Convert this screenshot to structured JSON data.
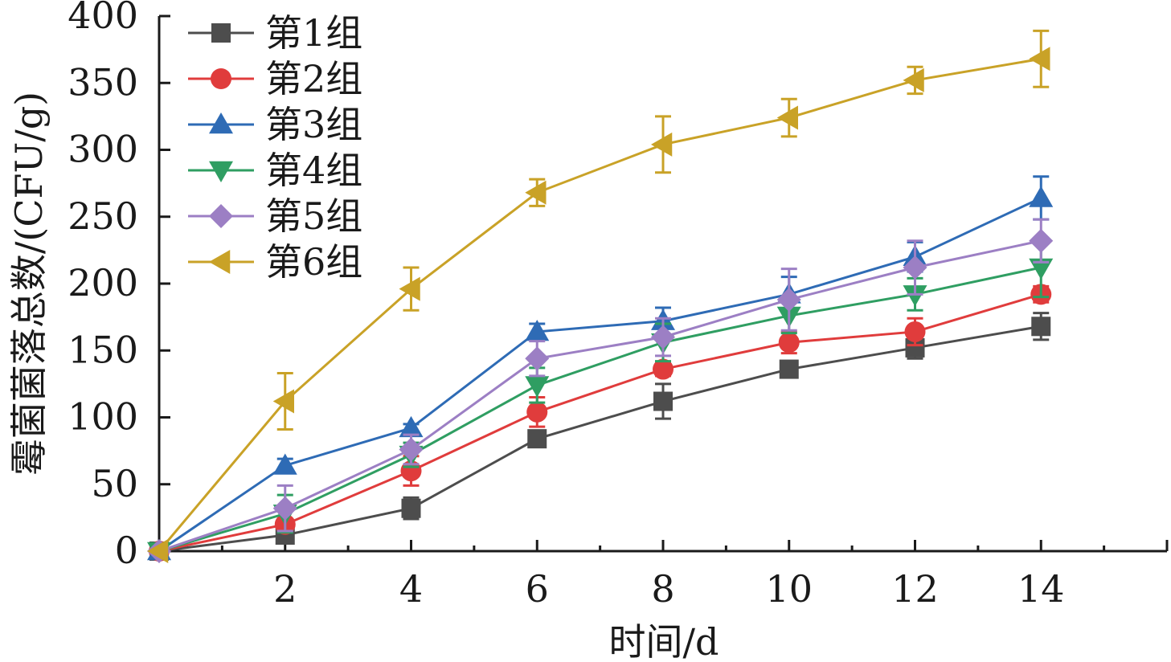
{
  "chart_data": {
    "type": "line",
    "title": "",
    "xlabel": "时间/d",
    "ylabel": "霉菌菌落总数/(CFU/g)",
    "xlim": [
      0,
      16
    ],
    "ylim": [
      0,
      400
    ],
    "x_ticks": [
      2,
      4,
      6,
      8,
      10,
      12,
      14
    ],
    "y_ticks": [
      0,
      50,
      100,
      150,
      200,
      250,
      300,
      350,
      400
    ],
    "x": [
      0,
      2,
      4,
      6,
      8,
      10,
      12,
      14
    ],
    "grid": false,
    "legend_position": "top-left",
    "series": [
      {
        "name": "第1组",
        "color": "#4d4d4d",
        "marker": "square",
        "values": [
          0,
          12,
          32,
          84,
          112,
          136,
          152,
          168
        ],
        "errors": [
          0,
          3,
          8,
          3,
          13,
          4,
          8,
          10
        ]
      },
      {
        "name": "第2组",
        "color": "#e03c3c",
        "marker": "circle",
        "values": [
          0,
          20,
          60,
          104,
          136,
          156,
          164,
          192
        ],
        "errors": [
          0,
          4,
          11,
          11,
          5,
          8,
          10,
          6
        ]
      },
      {
        "name": "第3组",
        "color": "#2e6bb5",
        "marker": "triangle-up",
        "values": [
          0,
          64,
          92,
          164,
          172,
          192,
          220,
          264
        ],
        "errors": [
          0,
          5,
          3,
          6,
          10,
          13,
          11,
          16
        ]
      },
      {
        "name": "第4组",
        "color": "#2f9e62",
        "marker": "triangle-down",
        "values": [
          0,
          28,
          72,
          124,
          156,
          176,
          192,
          212
        ],
        "errors": [
          0,
          14,
          9,
          13,
          14,
          13,
          12,
          22
        ]
      },
      {
        "name": "第5组",
        "color": "#9c7fc4",
        "marker": "diamond",
        "values": [
          0,
          32,
          76,
          144,
          160,
          188,
          212,
          232
        ],
        "errors": [
          0,
          17,
          11,
          13,
          14,
          23,
          20,
          16
        ]
      },
      {
        "name": "第6组",
        "color": "#c9a227",
        "marker": "triangle-left",
        "values": [
          0,
          112,
          196,
          268,
          304,
          324,
          352,
          368
        ],
        "errors": [
          0,
          21,
          16,
          10,
          21,
          14,
          10,
          21
        ]
      }
    ]
  }
}
